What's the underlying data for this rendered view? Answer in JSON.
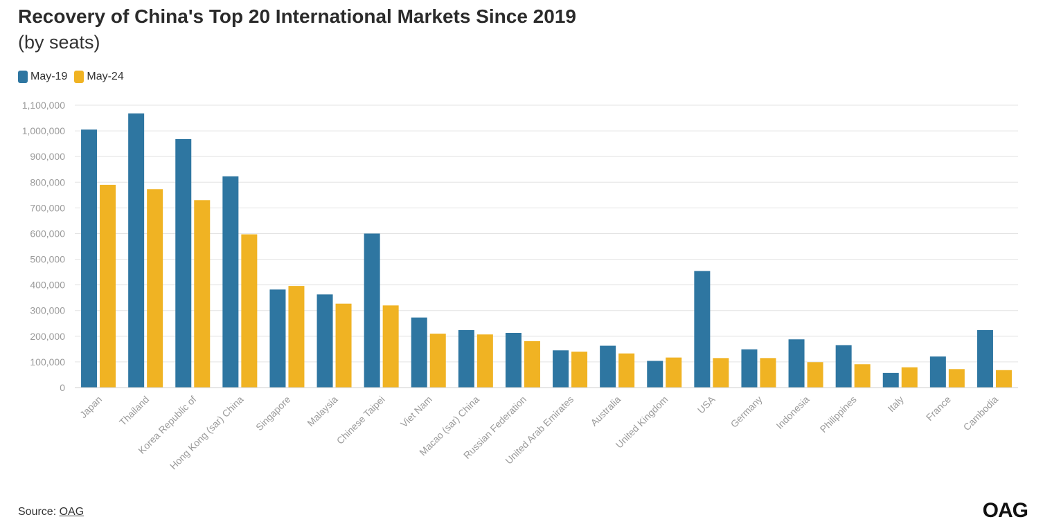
{
  "title": "Recovery of China's Top 20 International Markets Since 2019",
  "subtitle": "(by seats)",
  "source_label": "Source:",
  "source_link": "OAG",
  "logo_text": "OAG",
  "colors": {
    "may19": "#2e76a1",
    "may24": "#f0b323",
    "grid": "#e3e3e3",
    "tick": "#9a9a9a"
  },
  "chart_data": {
    "type": "bar",
    "categories": [
      "Japan",
      "Thailand",
      "Korea Republic of",
      "Hong Kong (sar) China",
      "Singapore",
      "Malaysia",
      "Chinese Taipei",
      "Viet Nam",
      "Macao (sar) China",
      "Russian Federation",
      "United Arab Emirates",
      "Australia",
      "United Kingdom",
      "USA",
      "Germany",
      "Indonesia",
      "Philippines",
      "Italy",
      "France",
      "Cambodia"
    ],
    "series": [
      {
        "name": "May-19",
        "values": [
          1005000,
          1068000,
          968000,
          823000,
          382000,
          363000,
          600000,
          273000,
          224000,
          213000,
          145000,
          163000,
          104000,
          454000,
          149000,
          188000,
          165000,
          57000,
          121000,
          224000
        ]
      },
      {
        "name": "May-24",
        "values": [
          790000,
          773000,
          730000,
          597000,
          396000,
          327000,
          320000,
          210000,
          207000,
          181000,
          140000,
          133000,
          117000,
          115000,
          115000,
          99000,
          91000,
          79000,
          72000,
          68000
        ]
      }
    ],
    "ylim": [
      0,
      1100000
    ],
    "yticks": [
      0,
      100000,
      200000,
      300000,
      400000,
      500000,
      600000,
      700000,
      800000,
      900000,
      1000000,
      1100000
    ],
    "ytick_labels": [
      "0",
      "100,000",
      "200,000",
      "300,000",
      "400,000",
      "500,000",
      "600,000",
      "700,000",
      "800,000",
      "900,000",
      "1,000,000",
      "1,100,000"
    ],
    "grid": true,
    "legend": "top-left"
  }
}
